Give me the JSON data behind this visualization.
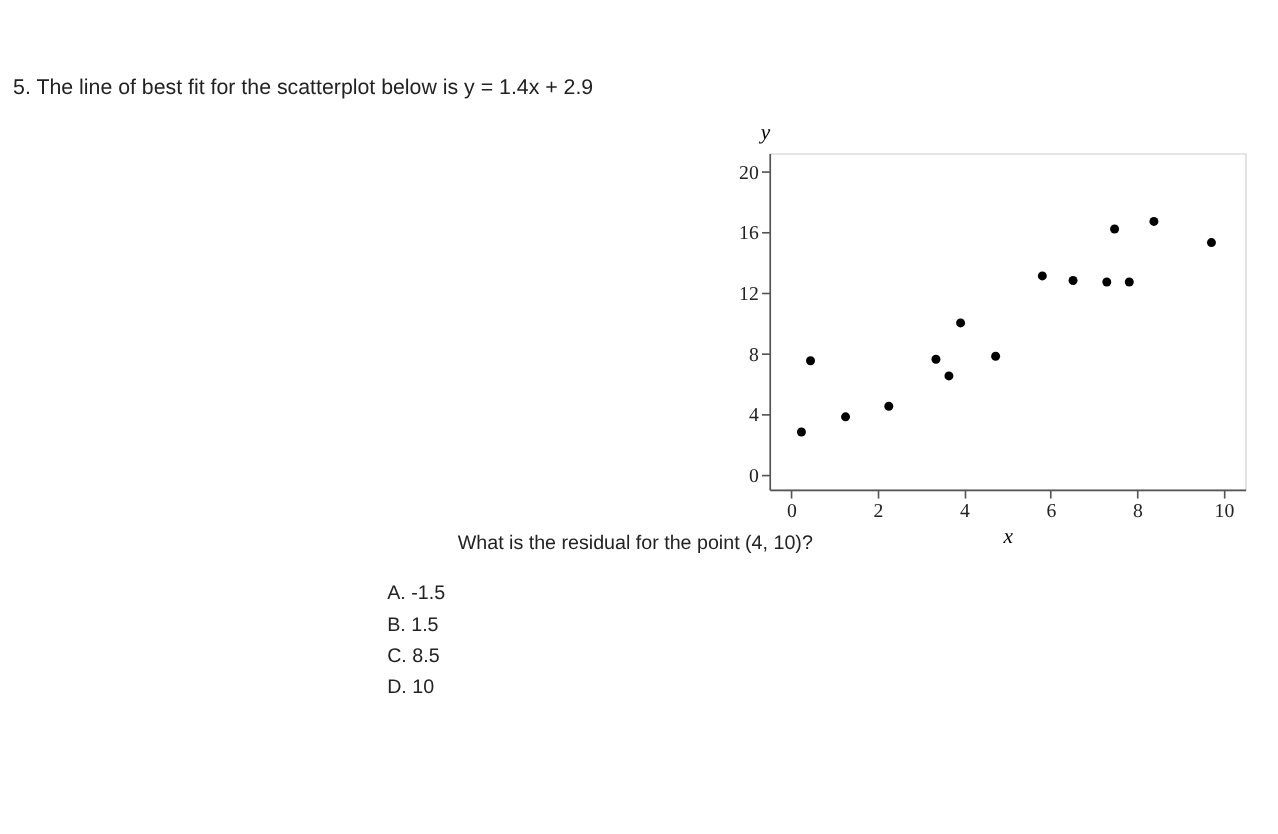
{
  "chart_data": {
    "type": "scatter",
    "title": "5.  The line of best fit for the scatterplot below is y = 1.4x + 2.9",
    "xlabel": "x",
    "ylabel": "y",
    "x": [
      0.24,
      0.45,
      1.26,
      2.26,
      3.35,
      3.65,
      3.92,
      4.73,
      5.81,
      6.52,
      7.3,
      7.48,
      7.82,
      8.39,
      9.72
    ],
    "series": [
      {
        "color": "#000000",
        "values": [
          2.8,
          7.5,
          3.8,
          4.5,
          7.6,
          6.5,
          10.0,
          7.8,
          13.1,
          12.8,
          12.7,
          16.2,
          12.7,
          16.7,
          15.3
        ]
      }
    ],
    "xlim": [
      -0.5,
      10.5
    ],
    "ylim": [
      -1,
      21.2
    ],
    "xticks": [
      0,
      2,
      4,
      6,
      8,
      10
    ],
    "yticks": [
      0,
      4,
      8,
      12,
      16,
      20
    ],
    "marker": "circle",
    "grid": false,
    "annotations": [
      "What is the residual for the point (4, 10)?",
      "A.  -1.5",
      "B.  1.5",
      "C.  8.5",
      "D.  10"
    ]
  }
}
